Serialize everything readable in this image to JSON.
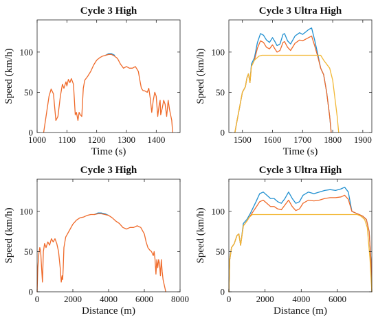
{
  "colors": {
    "s1": "#1f8fd0",
    "s2": "#ef6a2a",
    "s3": "#f2b733"
  },
  "chart_data": [
    {
      "type": "line",
      "title": "Cycle 3 High",
      "xlabel": "Time (s)",
      "ylabel": "Speed (km/h)",
      "xlim": [
        1000,
        1480
      ],
      "ylim": [
        0,
        140
      ],
      "xticks": [
        "1000",
        "1100",
        "1200",
        "1300",
        "1400"
      ],
      "yticks": [
        "0",
        "50",
        "100"
      ],
      "xtick_values": [
        1000,
        1100,
        1200,
        1300,
        1400
      ],
      "ytick_values": [
        0,
        50,
        100
      ],
      "grid": false,
      "series": [
        {
          "color_key": "s1",
          "x": [
            1230,
            1240,
            1250,
            1260
          ],
          "y": [
            96,
            98,
            98,
            96
          ]
        },
        {
          "color_key": "s2",
          "x": [
            1022,
            1030,
            1040,
            1047,
            1055,
            1063,
            1070,
            1078,
            1085,
            1090,
            1097,
            1100,
            1105,
            1110,
            1115,
            1122,
            1128,
            1132,
            1137,
            1141,
            1145,
            1150,
            1155,
            1160,
            1170,
            1180,
            1190,
            1200,
            1210,
            1220,
            1230,
            1240,
            1250,
            1260,
            1270,
            1280,
            1290,
            1300,
            1310,
            1320,
            1330,
            1340,
            1345,
            1350,
            1356,
            1360,
            1370,
            1375,
            1380,
            1385,
            1390,
            1395,
            1400,
            1405,
            1410,
            1413,
            1415,
            1420,
            1425,
            1430,
            1435,
            1440,
            1445,
            1452,
            1455
          ],
          "y": [
            0,
            20,
            45,
            54,
            48,
            15,
            20,
            45,
            60,
            55,
            63,
            58,
            66,
            62,
            67,
            60,
            22,
            25,
            15,
            25,
            22,
            20,
            55,
            65,
            70,
            76,
            84,
            90,
            93,
            95,
            96,
            97,
            97,
            95,
            92,
            85,
            80,
            82,
            80,
            80,
            82,
            76,
            65,
            55,
            52,
            52,
            50,
            55,
            42,
            25,
            40,
            50,
            45,
            20,
            35,
            40,
            22,
            30,
            40,
            35,
            20,
            40,
            28,
            15,
            0
          ]
        }
      ]
    },
    {
      "type": "line",
      "title": "Cycle 3 Ultra High",
      "xlabel": "Time (s)",
      "ylabel": "Speed (km/h)",
      "xlim": [
        1455,
        1930
      ],
      "ylim": [
        0,
        140
      ],
      "xticks": [
        "1500",
        "1600",
        "1700",
        "1800",
        "1900"
      ],
      "yticks": [
        "0",
        "50",
        "100"
      ],
      "xtick_values": [
        1500,
        1600,
        1700,
        1800,
        1900
      ],
      "ytick_values": [
        0,
        50,
        100
      ],
      "grid": false,
      "series": [
        {
          "color_key": "s1",
          "x": [
            1475,
            1480,
            1490,
            1500,
            1510,
            1515,
            1520,
            1525,
            1530,
            1540,
            1550,
            1560,
            1570,
            1580,
            1590,
            1600,
            1608,
            1615,
            1625,
            1635,
            1640,
            1650,
            1660,
            1675,
            1690,
            1700,
            1710,
            1720,
            1730,
            1740,
            1750,
            1760,
            1770,
            1780,
            1790,
            1795
          ],
          "y": [
            0,
            10,
            30,
            50,
            57,
            68,
            73,
            62,
            85,
            93,
            112,
            123,
            121,
            115,
            112,
            118,
            113,
            108,
            110,
            122,
            123,
            114,
            110,
            120,
            124,
            122,
            125,
            128,
            130,
            115,
            98,
            80,
            72,
            50,
            20,
            0
          ]
        },
        {
          "color_key": "s2",
          "x": [
            1475,
            1480,
            1490,
            1500,
            1510,
            1515,
            1520,
            1525,
            1530,
            1540,
            1550,
            1560,
            1570,
            1580,
            1590,
            1600,
            1608,
            1615,
            1625,
            1635,
            1640,
            1650,
            1660,
            1675,
            1690,
            1700,
            1710,
            1720,
            1730,
            1740,
            1750,
            1760,
            1770,
            1780,
            1790,
            1795
          ],
          "y": [
            0,
            10,
            30,
            50,
            57,
            68,
            73,
            62,
            82,
            90,
            105,
            114,
            112,
            106,
            104,
            109,
            104,
            100,
            102,
            112,
            113,
            106,
            102,
            111,
            115,
            114,
            116,
            118,
            120,
            108,
            95,
            80,
            72,
            50,
            20,
            0
          ]
        },
        {
          "color_key": "s3",
          "x": [
            1475,
            1480,
            1490,
            1500,
            1510,
            1515,
            1520,
            1525,
            1530,
            1540,
            1555,
            1565,
            1580,
            1600,
            1640,
            1680,
            1720,
            1760,
            1770,
            1790,
            1800,
            1815,
            1820
          ],
          "y": [
            0,
            10,
            30,
            50,
            57,
            68,
            73,
            62,
            82,
            90,
            95,
            96,
            96,
            96,
            96,
            96,
            96,
            96,
            90,
            80,
            65,
            20,
            0
          ]
        }
      ]
    },
    {
      "type": "line",
      "title": "Cycle 3 High",
      "xlabel": "Distance (m)",
      "ylabel": "Speed (km/h)",
      "xlim": [
        0,
        8000
      ],
      "ylim": [
        0,
        140
      ],
      "xticks": [
        "0",
        "2000",
        "4000",
        "6000",
        "8000"
      ],
      "yticks": [
        "0",
        "50",
        "100"
      ],
      "xtick_values": [
        0,
        2000,
        4000,
        6000,
        8000
      ],
      "ytick_values": [
        0,
        50,
        100
      ],
      "grid": false,
      "series": [
        {
          "color_key": "s1",
          "x": [
            3200,
            3400,
            3600,
            3800,
            4000
          ],
          "y": [
            96,
            98,
            98,
            97,
            95
          ]
        },
        {
          "color_key": "s2",
          "x": [
            0,
            40,
            100,
            150,
            200,
            250,
            300,
            350,
            420,
            500,
            600,
            700,
            800,
            900,
            1000,
            1100,
            1200,
            1300,
            1350,
            1400,
            1430,
            1460,
            1500,
            1600,
            1800,
            2000,
            2200,
            2400,
            2600,
            2800,
            3000,
            3200,
            3400,
            3600,
            3800,
            4000,
            4200,
            4400,
            4600,
            4800,
            5000,
            5200,
            5400,
            5600,
            5800,
            6000,
            6100,
            6200,
            6300,
            6400,
            6500,
            6550,
            6600,
            6650,
            6700,
            6750,
            6800,
            6850,
            6900,
            6950,
            7000,
            7050,
            7100,
            7150,
            7200
          ],
          "y": [
            0,
            30,
            48,
            55,
            50,
            30,
            12,
            50,
            60,
            55,
            62,
            58,
            66,
            62,
            66,
            60,
            50,
            28,
            12,
            20,
            15,
            30,
            55,
            68,
            76,
            84,
            89,
            92,
            93,
            95,
            96,
            96,
            97,
            97,
            96,
            95,
            92,
            88,
            85,
            80,
            78,
            80,
            80,
            82,
            80,
            72,
            62,
            55,
            52,
            50,
            45,
            50,
            40,
            22,
            40,
            30,
            40,
            35,
            20,
            40,
            25,
            15,
            10,
            5,
            0
          ]
        }
      ]
    },
    {
      "type": "line",
      "title": "Cycle 3 Ultra High",
      "xlabel": "Distance (m)",
      "ylabel": "Speed (km/h)",
      "xlim": [
        0,
        7900
      ],
      "ylim": [
        0,
        140
      ],
      "xticks": [
        "0",
        "2000",
        "4000",
        "6000"
      ],
      "yticks": [
        "0",
        "50",
        "100"
      ],
      "xtick_values": [
        0,
        2000,
        4000,
        6000
      ],
      "ytick_values": [
        0,
        50,
        100
      ],
      "grid": false,
      "series": [
        {
          "color_key": "s1",
          "x": [
            0,
            50,
            150,
            300,
            450,
            550,
            650,
            800,
            1000,
            1200,
            1500,
            1700,
            1900,
            2100,
            2300,
            2500,
            2700,
            2900,
            3100,
            3300,
            3500,
            3700,
            3900,
            4100,
            4400,
            4700,
            5000,
            5300,
            5600,
            5900,
            6200,
            6400,
            6600,
            6800,
            7000,
            7200,
            7400,
            7600,
            7750,
            7850,
            7900
          ],
          "y": [
            0,
            40,
            55,
            60,
            70,
            72,
            58,
            85,
            90,
            98,
            112,
            122,
            124,
            120,
            116,
            116,
            112,
            110,
            116,
            124,
            116,
            110,
            112,
            120,
            124,
            122,
            124,
            126,
            127,
            126,
            128,
            130,
            124,
            100,
            98,
            96,
            94,
            90,
            75,
            40,
            0
          ]
        },
        {
          "color_key": "s2",
          "x": [
            0,
            50,
            150,
            300,
            450,
            550,
            650,
            800,
            1000,
            1200,
            1500,
            1700,
            1900,
            2100,
            2300,
            2500,
            2700,
            2900,
            3100,
            3300,
            3500,
            3700,
            3900,
            4100,
            4400,
            4700,
            5000,
            5300,
            5600,
            5900,
            6200,
            6400,
            6600,
            6800,
            7000,
            7200,
            7400,
            7600,
            7750,
            7850,
            7900
          ],
          "y": [
            0,
            40,
            55,
            60,
            70,
            72,
            58,
            82,
            88,
            95,
            105,
            112,
            114,
            110,
            106,
            106,
            103,
            102,
            108,
            114,
            106,
            101,
            103,
            110,
            114,
            113,
            114,
            116,
            117,
            117,
            118,
            120,
            115,
            100,
            98,
            96,
            94,
            90,
            75,
            40,
            0
          ]
        },
        {
          "color_key": "s3",
          "x": [
            0,
            50,
            150,
            300,
            450,
            550,
            650,
            800,
            1000,
            1100,
            1300,
            2000,
            3000,
            4000,
            5000,
            6000,
            6900,
            7100,
            7300,
            7500,
            7650,
            7800,
            7900
          ],
          "y": [
            0,
            40,
            55,
            60,
            70,
            72,
            58,
            82,
            88,
            92,
            96,
            96,
            96,
            96,
            96,
            96,
            96,
            96,
            94,
            90,
            80,
            40,
            0
          ]
        }
      ]
    }
  ]
}
